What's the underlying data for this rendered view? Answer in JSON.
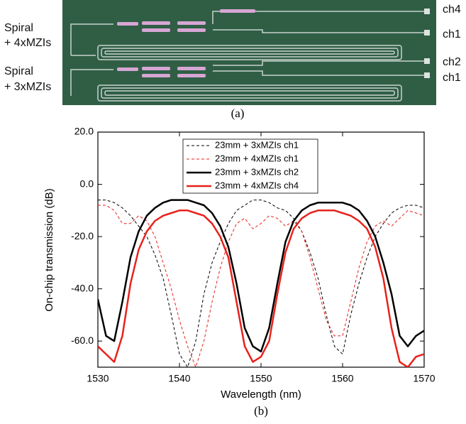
{
  "figure_a": {
    "labels": [
      "Spiral",
      "+ 4xMZIs",
      "Spiral",
      "+ 3xMZIs"
    ],
    "channels": [
      "ch4",
      "ch1",
      "ch2",
      "ch1"
    ],
    "caption": "(a)"
  },
  "chart_data": {
    "type": "line",
    "xlabel": "Wavelength (nm)",
    "ylabel": "On-chip transmission (dB)",
    "caption": "(b)",
    "x": [
      1530,
      1531,
      1532,
      1533,
      1534,
      1535,
      1536,
      1537,
      1538,
      1539,
      1540,
      1541,
      1542,
      1543,
      1544,
      1545,
      1546,
      1547,
      1548,
      1549,
      1550,
      1551,
      1552,
      1553,
      1554,
      1555,
      1556,
      1557,
      1558,
      1559,
      1560,
      1561,
      1562,
      1563,
      1564,
      1565,
      1566,
      1567,
      1568,
      1569,
      1570
    ],
    "xlim": [
      1530,
      1570
    ],
    "xticks": [
      1530,
      1540,
      1550,
      1560,
      1570
    ],
    "ylim": [
      -70,
      20
    ],
    "yticks": [
      {
        "value": -60,
        "label": "-60.0"
      },
      {
        "value": -40,
        "label": "-40.0"
      },
      {
        "value": -20,
        "label": "-20.0"
      },
      {
        "value": 0,
        "label": "0.0"
      },
      {
        "value": 20,
        "label": "20.0"
      }
    ],
    "grid": false,
    "legend": "top-center",
    "series": [
      {
        "name": "23mm + 3xMZIs ch1",
        "color": "#000000",
        "style": "dashed",
        "linewidth": 1,
        "values": [
          -6,
          -6,
          -7,
          -9,
          -12,
          -16,
          -20,
          -27,
          -36,
          -50,
          -65,
          -70,
          -60,
          -42,
          -30,
          -22,
          -15,
          -10,
          -8,
          -6,
          -6,
          -7,
          -9,
          -10,
          -13,
          -18,
          -26,
          -36,
          -50,
          -62,
          -65,
          -50,
          -38,
          -28,
          -20,
          -15,
          -11,
          -9,
          -8,
          -8,
          -9
        ]
      },
      {
        "name": "23mm + 4xMZIs ch1",
        "color": "#e8221c",
        "style": "dashed",
        "linewidth": 1,
        "values": [
          -8,
          -8,
          -10,
          -15,
          -15,
          -12,
          -14,
          -20,
          -30,
          -40,
          -52,
          -62,
          -70,
          -60,
          -45,
          -32,
          -22,
          -15,
          -13,
          -17,
          -15,
          -12,
          -13,
          -16,
          -14,
          -18,
          -28,
          -40,
          -52,
          -58,
          -58,
          -45,
          -32,
          -22,
          -16,
          -14,
          -16,
          -13,
          -10,
          -11,
          -12
        ]
      },
      {
        "name": "23mm + 3xMZIs ch2",
        "color": "#000000",
        "style": "solid",
        "linewidth": 2.5,
        "values": [
          -44,
          -58,
          -60,
          -45,
          -28,
          -18,
          -12,
          -9,
          -7,
          -6,
          -6,
          -6,
          -7,
          -8,
          -11,
          -16,
          -24,
          -38,
          -55,
          -62,
          -64,
          -55,
          -38,
          -22,
          -14,
          -10,
          -8,
          -7,
          -7,
          -7,
          -7,
          -8,
          -10,
          -14,
          -20,
          -30,
          -42,
          -58,
          -62,
          -58,
          -56
        ]
      },
      {
        "name": "23mm + 4xMZIs ch4",
        "color": "#e8221c",
        "style": "solid",
        "linewidth": 2.5,
        "values": [
          -62,
          -65,
          -68,
          -58,
          -38,
          -25,
          -18,
          -14,
          -12,
          -11,
          -10,
          -10,
          -11,
          -12,
          -15,
          -20,
          -28,
          -45,
          -62,
          -68,
          -66,
          -60,
          -42,
          -26,
          -17,
          -13,
          -11,
          -10,
          -10,
          -10,
          -11,
          -12,
          -14,
          -17,
          -24,
          -36,
          -55,
          -68,
          -70,
          -66,
          -65
        ]
      }
    ]
  }
}
